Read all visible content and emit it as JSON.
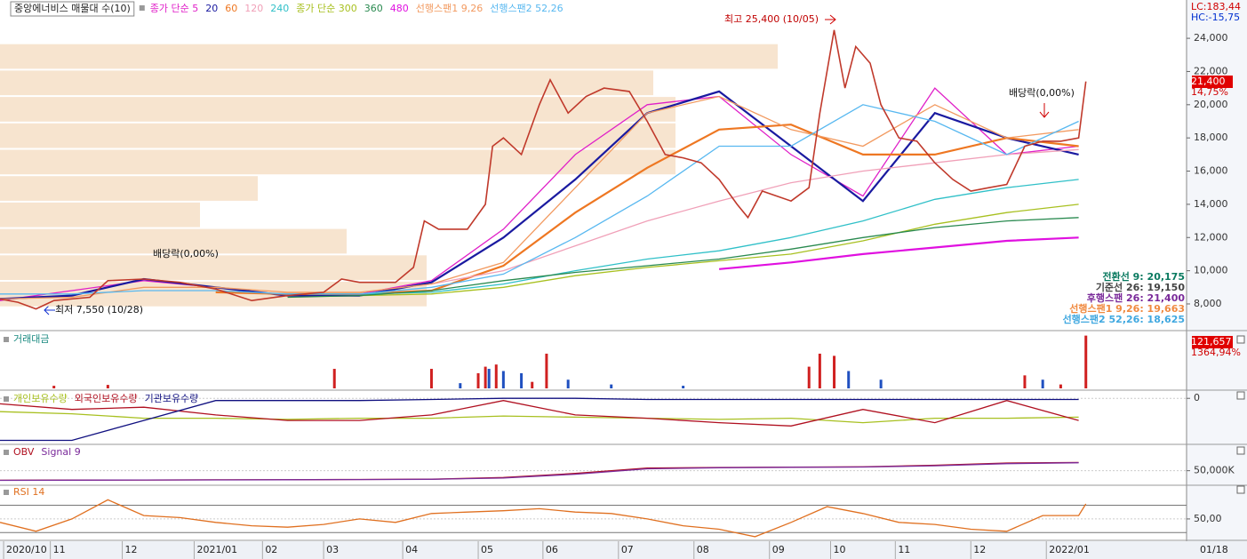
{
  "chart_data": [
    {
      "type": "line",
      "title": "중앙에너비스 매물대 수(10)",
      "xlim": [
        0,
        330
      ],
      "ylim": [
        6500,
        26200
      ],
      "yticks": [
        {
          "value": 8000,
          "label": "8,000"
        },
        {
          "value": 10000,
          "label": "10,000"
        },
        {
          "value": 12000,
          "label": "12,000"
        },
        {
          "value": 14000,
          "label": "14,000"
        },
        {
          "value": 16000,
          "label": "16,000"
        },
        {
          "value": 18000,
          "label": "18,000"
        },
        {
          "value": 20000,
          "label": "20,000"
        },
        {
          "value": 22000,
          "label": "22,000"
        },
        {
          "value": 24000,
          "label": "24,000"
        }
      ],
      "volume_profile": {
        "bins": [
          7800,
          9390,
          10980,
          12570,
          14160,
          15750,
          17340,
          18930,
          20520,
          22110,
          23700
        ],
        "values": [
          480,
          480,
          390,
          225,
          290,
          760,
          760,
          760,
          735,
          875
        ],
        "xlim": [
          0,
          1335
        ],
        "color": "#f7e4cf"
      },
      "price": {
        "color": "#c0392b",
        "x": [
          0,
          5,
          10,
          15,
          25,
          30,
          40,
          50,
          60,
          70,
          80,
          90,
          95,
          100,
          110,
          115,
          118,
          122,
          130,
          135,
          137,
          140,
          145,
          150,
          153,
          158,
          163,
          168,
          175,
          180,
          185,
          190,
          195,
          200,
          205,
          208,
          212,
          220,
          225,
          228,
          232,
          235,
          238,
          242,
          245,
          250,
          255,
          260,
          265,
          270,
          275,
          280,
          285,
          290,
          295,
          300,
          302
        ],
        "values": [
          8300,
          8100,
          7700,
          8200,
          8400,
          9400,
          9500,
          9300,
          8900,
          8200,
          8500,
          8700,
          9500,
          9300,
          9300,
          10200,
          13000,
          12500,
          12500,
          14000,
          17500,
          18000,
          17000,
          20000,
          21500,
          19500,
          20500,
          21000,
          20800,
          19000,
          17000,
          16800,
          16500,
          15500,
          14000,
          13200,
          14800,
          14200,
          15000,
          19500,
          24500,
          21000,
          23500,
          22500,
          20000,
          18000,
          17800,
          16500,
          15500,
          14800,
          15000,
          15200,
          17500,
          17800,
          17800,
          18000,
          21400
        ]
      },
      "x": [
        0,
        20,
        40,
        60,
        80,
        100,
        120,
        140,
        160,
        180,
        200,
        220,
        240,
        260,
        280,
        300
      ],
      "series": [
        {
          "name": "종가 단순 5",
          "color": "#e020c8",
          "values": [
            8200,
            8800,
            9400,
            9000,
            8500,
            8600,
            9400,
            12500,
            17000,
            20000,
            20500,
            17000,
            14500,
            21000,
            17000,
            17500
          ]
        },
        {
          "name": "20",
          "color": "#1a1aa0",
          "values": [
            8300,
            8500,
            9500,
            9000,
            8500,
            8500,
            9300,
            12000,
            15500,
            19500,
            20800,
            17500,
            14200,
            19500,
            18000,
            17000
          ]
        },
        {
          "name": "60",
          "color": "#ee7722",
          "values": [
            null,
            null,
            null,
            8700,
            8600,
            8600,
            8800,
            10300,
            13500,
            16200,
            18500,
            18800,
            17000,
            17000,
            18000,
            17500
          ]
        },
        {
          "name": "120",
          "color": "#f0a0b8",
          "values": [
            null,
            null,
            null,
            null,
            null,
            null,
            9200,
            10000,
            11500,
            13000,
            14200,
            15300,
            16000,
            16500,
            17000,
            17300
          ]
        },
        {
          "name": "240",
          "color": "#30c0c8",
          "values": [
            null,
            null,
            null,
            null,
            8600,
            8600,
            8700,
            9200,
            10000,
            10700,
            11200,
            12000,
            13000,
            14300,
            15000,
            15500
          ]
        },
        {
          "name": "종가 단순 300",
          "color": "#a8c020",
          "values": [
            null,
            null,
            null,
            null,
            null,
            8500,
            8600,
            9000,
            9700,
            10200,
            10600,
            11000,
            11800,
            12800,
            13500,
            14000
          ]
        },
        {
          "name": "360",
          "color": "#2a8a50",
          "values": [
            null,
            null,
            null,
            null,
            8400,
            8500,
            8800,
            9400,
            9900,
            10300,
            10700,
            11300,
            12000,
            12600,
            13000,
            13200
          ]
        },
        {
          "name": "480",
          "color": "#e010e0",
          "values": [
            null,
            null,
            null,
            null,
            null,
            null,
            null,
            null,
            null,
            null,
            10100,
            10500,
            11000,
            11400,
            11800,
            12000
          ]
        },
        {
          "name": "선행스팬1 9,26",
          "color": "#f29a60",
          "values": [
            8300,
            8400,
            9000,
            9000,
            8700,
            8700,
            9200,
            10500,
            15000,
            19500,
            20500,
            18500,
            17500,
            20000,
            18000,
            18500
          ]
        },
        {
          "name": "선행스팬2 52,26",
          "color": "#58b8f0",
          "values": [
            8600,
            8600,
            8800,
            8800,
            8600,
            8600,
            9000,
            9800,
            12000,
            14500,
            17500,
            17500,
            20000,
            19000,
            17000,
            19000
          ]
        }
      ],
      "annotations": [
        "최고 25,400 (10/05)",
        "최저 7,550 (10/28)",
        "배당락(0,00%)",
        "배당락(0,00%)"
      ],
      "side_labels": [
        {
          "text": "LC:183,44",
          "color": "#d00000"
        },
        {
          "text": "HC:-15,75",
          "color": "#0030d0"
        },
        {
          "text": "21,400",
          "color": "#ffffff"
        },
        {
          "text": "14,75%",
          "color": "#d00000"
        }
      ],
      "indicator_values": [
        {
          "text": "전환선 9: 20,175",
          "color": "#0a7a60"
        },
        {
          "text": "기준선 26: 19,150",
          "color": "#444444"
        },
        {
          "text": "후행스팬 26: 21,400",
          "color": "#7a2a9a"
        },
        {
          "text": "선행스팬1 9,26: 19,663",
          "color": "#f08a40"
        },
        {
          "text": "선행스팬2 52,26: 18,625",
          "color": "#40a8e0"
        }
      ]
    },
    {
      "type": "bar",
      "title": "거래대금",
      "xlim": [
        0,
        330
      ],
      "ylim": [
        0,
        125000
      ],
      "x": [
        15,
        30,
        93,
        120,
        128,
        133,
        135,
        136,
        138,
        140,
        145,
        148,
        152,
        158,
        170,
        190,
        225,
        228,
        232,
        236,
        245,
        285,
        290,
        295,
        302
      ],
      "values": [
        6000,
        8000,
        45000,
        45000,
        12000,
        35000,
        50000,
        45000,
        55000,
        40000,
        35000,
        15000,
        80000,
        20000,
        9000,
        6000,
        50000,
        80000,
        75000,
        40000,
        20000,
        30000,
        20000,
        9000,
        121657
      ],
      "colors": [
        "#d02020",
        "#d02020",
        "#d02020",
        "#d02020",
        "#2050c0",
        "#d02020",
        "#d02020",
        "#2050c0",
        "#d02020",
        "#2050c0",
        "#2050c0",
        "#d02020",
        "#d02020",
        "#2050c0",
        "#2050c0",
        "#2050c0",
        "#d02020",
        "#d02020",
        "#d02020",
        "#2050c0",
        "#2050c0",
        "#d02020",
        "#2050c0",
        "#d02020",
        "#d02020"
      ],
      "side_labels": [
        {
          "text": "121,657",
          "color": "#ffffff"
        },
        {
          "text": "1364,94%",
          "color": "#d00000"
        }
      ]
    },
    {
      "type": "line",
      "xlim": [
        0,
        330
      ],
      "ylim": [
        -40,
        5
      ],
      "yticks": [
        0
      ],
      "x": [
        0,
        20,
        40,
        60,
        80,
        100,
        120,
        140,
        160,
        180,
        200,
        220,
        240,
        260,
        280,
        300
      ],
      "series": [
        {
          "name": "개인보유수량",
          "color": "#a8c020",
          "values": [
            -12,
            -14,
            -18,
            -18,
            -19,
            -18,
            -18,
            -16,
            -17,
            -18,
            -19,
            -18,
            -22,
            -18,
            -18,
            -17
          ]
        },
        {
          "name": "외국인보유수량",
          "color": "#b01020",
          "values": [
            -5,
            -10,
            -8,
            -15,
            -20,
            -20,
            -15,
            -2,
            -15,
            -18,
            -22,
            -25,
            -10,
            -22,
            -2,
            -20
          ]
        },
        {
          "name": "기관보유수량",
          "color": "#101080",
          "values": [
            -38,
            -38,
            -20,
            -2,
            -2,
            -2,
            -1,
            0,
            0,
            -1,
            -1,
            -1,
            -1,
            -1,
            -1,
            -1
          ]
        }
      ]
    },
    {
      "type": "line",
      "xlim": [
        0,
        330
      ],
      "ylim": [
        0,
        140000
      ],
      "yticks": [
        {
          "value": 50000,
          "label": "50,000K"
        }
      ],
      "x": [
        0,
        20,
        40,
        60,
        80,
        100,
        120,
        140,
        160,
        180,
        200,
        220,
        240,
        260,
        280,
        300
      ],
      "series": [
        {
          "name": "OBV",
          "color": "#b01020",
          "values": [
            15000,
            15500,
            16000,
            16500,
            17000,
            18000,
            19000,
            25000,
            40000,
            60000,
            62000,
            63000,
            64000,
            70000,
            78000,
            80000
          ]
        },
        {
          "name": "Signal 9",
          "color": "#7a2a9a",
          "values": [
            14800,
            15300,
            15800,
            16300,
            16800,
            17700,
            18700,
            23000,
            37000,
            57000,
            61000,
            62500,
            63500,
            68000,
            76000,
            79000
          ]
        }
      ]
    },
    {
      "type": "line",
      "xlim": [
        0,
        330
      ],
      "ylim": [
        20,
        98
      ],
      "yticks": [
        {
          "value": 50,
          "label": "50,00"
        }
      ],
      "levels": [
        30,
        70
      ],
      "xticks": [
        {
          "value": 1,
          "label": "2020/10"
        },
        {
          "value": 14,
          "label": "11"
        },
        {
          "value": 34,
          "label": "12"
        },
        {
          "value": 54,
          "label": "2021/01"
        },
        {
          "value": 73,
          "label": "02"
        },
        {
          "value": 90,
          "label": "03"
        },
        {
          "value": 112,
          "label": "04"
        },
        {
          "value": 133,
          "label": "05"
        },
        {
          "value": 151,
          "label": "06"
        },
        {
          "value": 172,
          "label": "07"
        },
        {
          "value": 193,
          "label": "08"
        },
        {
          "value": 214,
          "label": "09"
        },
        {
          "value": 231,
          "label": "10"
        },
        {
          "value": 249,
          "label": "11"
        },
        {
          "value": 270,
          "label": "12"
        },
        {
          "value": 291,
          "label": "2022/01"
        }
      ],
      "current_date": "01/18",
      "x": [
        0,
        10,
        20,
        30,
        40,
        50,
        60,
        70,
        80,
        90,
        100,
        110,
        120,
        130,
        140,
        150,
        160,
        170,
        180,
        190,
        200,
        210,
        220,
        230,
        240,
        250,
        260,
        270,
        280,
        290,
        300,
        302
      ],
      "series": [
        {
          "name": "RSI 14",
          "color": "#e07020",
          "values": [
            45,
            32,
            50,
            78,
            55,
            52,
            45,
            40,
            38,
            42,
            50,
            45,
            58,
            60,
            62,
            65,
            60,
            58,
            50,
            40,
            35,
            24,
            45,
            68,
            58,
            45,
            42,
            35,
            32,
            55,
            55,
            72
          ]
        }
      ]
    }
  ]
}
